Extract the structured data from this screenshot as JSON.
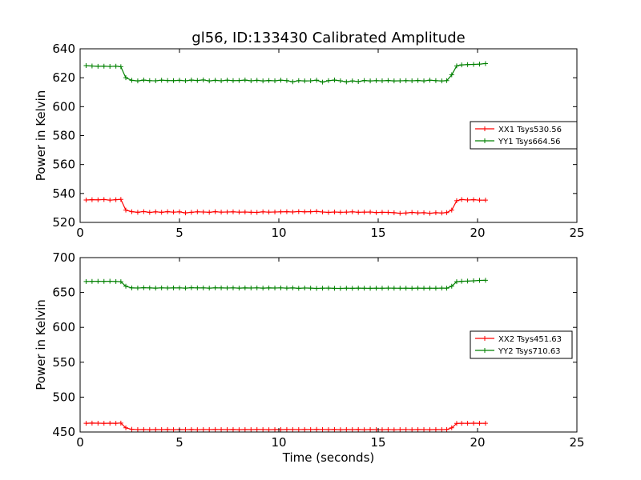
{
  "figure": {
    "title": "gl56, ID:133430 Calibrated Amplitude"
  },
  "chart_data": [
    {
      "type": "line",
      "title": "gl56, ID:133430 Calibrated Amplitude",
      "xlabel": "",
      "ylabel": "Power in Kelvin",
      "xlim": [
        0,
        25
      ],
      "ylim": [
        520,
        640
      ],
      "xticks": [
        0,
        5,
        10,
        15,
        20,
        25
      ],
      "yticks": [
        520,
        540,
        560,
        580,
        600,
        620,
        640
      ],
      "grid": false,
      "legend_position": "right",
      "x": [
        0.3,
        0.6,
        0.9,
        1.2,
        1.5,
        1.8,
        2.05,
        2.3,
        2.6,
        2.9,
        3.2,
        3.5,
        3.8,
        4.1,
        4.4,
        4.7,
        5.0,
        5.3,
        5.6,
        5.9,
        6.2,
        6.5,
        6.8,
        7.1,
        7.4,
        7.7,
        8.0,
        8.3,
        8.6,
        8.9,
        9.2,
        9.5,
        9.8,
        10.1,
        10.4,
        10.7,
        11.0,
        11.3,
        11.6,
        11.9,
        12.2,
        12.5,
        12.8,
        13.1,
        13.4,
        13.7,
        14.0,
        14.3,
        14.6,
        14.9,
        15.2,
        15.5,
        15.8,
        16.1,
        16.4,
        16.7,
        17.0,
        17.3,
        17.6,
        17.9,
        18.2,
        18.45,
        18.7,
        18.95,
        19.2,
        19.5,
        19.8,
        20.1,
        20.4
      ],
      "series": [
        {
          "name": "XX1 Tsys530.56",
          "color": "#ff0000",
          "values": [
            535.5,
            535.7,
            535.6,
            535.8,
            535.4,
            535.7,
            535.9,
            528.5,
            527.4,
            527.0,
            527.5,
            526.9,
            527.3,
            527.0,
            527.4,
            527.1,
            527.3,
            526.6,
            527.0,
            527.3,
            527.2,
            527.0,
            527.4,
            527.1,
            527.2,
            527.3,
            527.1,
            527.2,
            527.0,
            526.9,
            527.3,
            527.1,
            527.2,
            527.3,
            527.4,
            527.2,
            527.5,
            527.3,
            527.4,
            527.6,
            527.2,
            526.9,
            527.2,
            527.0,
            527.1,
            527.3,
            527.0,
            527.1,
            527.2,
            526.8,
            527.0,
            526.9,
            526.7,
            526.3,
            526.5,
            526.9,
            526.6,
            526.7,
            526.3,
            526.7,
            526.5,
            526.8,
            528.5,
            535.0,
            535.8,
            535.5,
            535.7,
            535.4,
            535.4
          ]
        },
        {
          "name": "YY1 Tsys664.56",
          "color": "#008000",
          "values": [
            628.4,
            628.1,
            627.9,
            628.0,
            627.8,
            628.0,
            627.6,
            620.0,
            618.2,
            617.8,
            618.4,
            618.0,
            617.9,
            618.3,
            618.1,
            618.0,
            618.2,
            617.9,
            618.4,
            618.1,
            618.5,
            617.8,
            618.2,
            617.9,
            618.3,
            618.0,
            618.1,
            618.4,
            617.9,
            618.2,
            617.8,
            618.1,
            617.9,
            618.3,
            618.0,
            617.2,
            618.0,
            617.8,
            617.9,
            618.3,
            617.0,
            618.0,
            618.4,
            617.9,
            617.1,
            617.8,
            617.3,
            618.1,
            617.8,
            618.0,
            617.9,
            618.1,
            617.8,
            617.9,
            618.0,
            617.9,
            618.1,
            617.8,
            618.3,
            618.0,
            617.8,
            618.0,
            622.0,
            628.2,
            628.9,
            629.1,
            629.2,
            629.4,
            629.8
          ]
        }
      ]
    },
    {
      "type": "line",
      "title": "",
      "xlabel": "Time (seconds)",
      "ylabel": "Power in Kelvin",
      "xlim": [
        0,
        25
      ],
      "ylim": [
        450,
        700
      ],
      "xticks": [
        0,
        5,
        10,
        15,
        20,
        25
      ],
      "yticks": [
        450,
        500,
        550,
        600,
        650,
        700
      ],
      "grid": false,
      "legend_position": "right",
      "x": [
        0.3,
        0.6,
        0.9,
        1.2,
        1.5,
        1.8,
        2.05,
        2.3,
        2.6,
        2.9,
        3.2,
        3.5,
        3.8,
        4.1,
        4.4,
        4.7,
        5.0,
        5.3,
        5.6,
        5.9,
        6.2,
        6.5,
        6.8,
        7.1,
        7.4,
        7.7,
        8.0,
        8.3,
        8.6,
        8.9,
        9.2,
        9.5,
        9.8,
        10.1,
        10.4,
        10.7,
        11.0,
        11.3,
        11.6,
        11.9,
        12.2,
        12.5,
        12.8,
        13.1,
        13.4,
        13.7,
        14.0,
        14.3,
        14.6,
        14.9,
        15.2,
        15.5,
        15.8,
        16.1,
        16.4,
        16.7,
        17.0,
        17.3,
        17.6,
        17.9,
        18.2,
        18.45,
        18.7,
        18.95,
        19.2,
        19.5,
        19.8,
        20.1,
        20.4
      ],
      "series": [
        {
          "name": "XX2 Tsys451.63",
          "color": "#ff0000",
          "values": [
            462.5,
            462.7,
            462.6,
            462.4,
            462.6,
            462.5,
            462.8,
            456.0,
            453.8,
            453.4,
            453.5,
            453.3,
            453.5,
            453.4,
            453.6,
            453.3,
            453.5,
            453.4,
            453.6,
            453.3,
            453.5,
            453.4,
            453.6,
            453.5,
            453.4,
            453.6,
            453.3,
            453.5,
            453.4,
            453.6,
            453.5,
            453.3,
            453.5,
            453.4,
            453.6,
            453.5,
            453.4,
            453.6,
            453.5,
            453.7,
            453.5,
            453.4,
            453.6,
            453.3,
            453.5,
            453.4,
            453.6,
            453.3,
            453.5,
            453.4,
            453.3,
            453.5,
            453.2,
            453.4,
            453.5,
            453.3,
            453.5,
            453.4,
            453.3,
            453.5,
            453.4,
            453.6,
            456.0,
            462.3,
            462.5,
            462.4,
            462.6,
            462.5,
            462.4
          ]
        },
        {
          "name": "YY2 Tsys710.63",
          "color": "#008000",
          "values": [
            665.8,
            665.9,
            666.0,
            665.9,
            666.1,
            665.8,
            665.5,
            659.0,
            656.5,
            656.4,
            656.8,
            656.5,
            656.3,
            656.6,
            656.4,
            656.5,
            656.6,
            656.3,
            656.8,
            656.5,
            656.6,
            656.3,
            656.7,
            656.5,
            656.4,
            656.6,
            656.3,
            656.5,
            656.4,
            656.6,
            656.3,
            656.5,
            656.4,
            656.6,
            656.3,
            656.5,
            656.0,
            656.4,
            656.3,
            655.8,
            656.2,
            656.3,
            656.0,
            655.9,
            656.2,
            656.0,
            656.3,
            656.1,
            656.0,
            656.2,
            656.1,
            656.3,
            656.2,
            656.1,
            656.2,
            656.0,
            656.3,
            656.1,
            656.2,
            656.1,
            656.3,
            656.2,
            659.0,
            665.5,
            666.0,
            666.3,
            666.8,
            667.3,
            667.5
          ]
        }
      ]
    }
  ]
}
